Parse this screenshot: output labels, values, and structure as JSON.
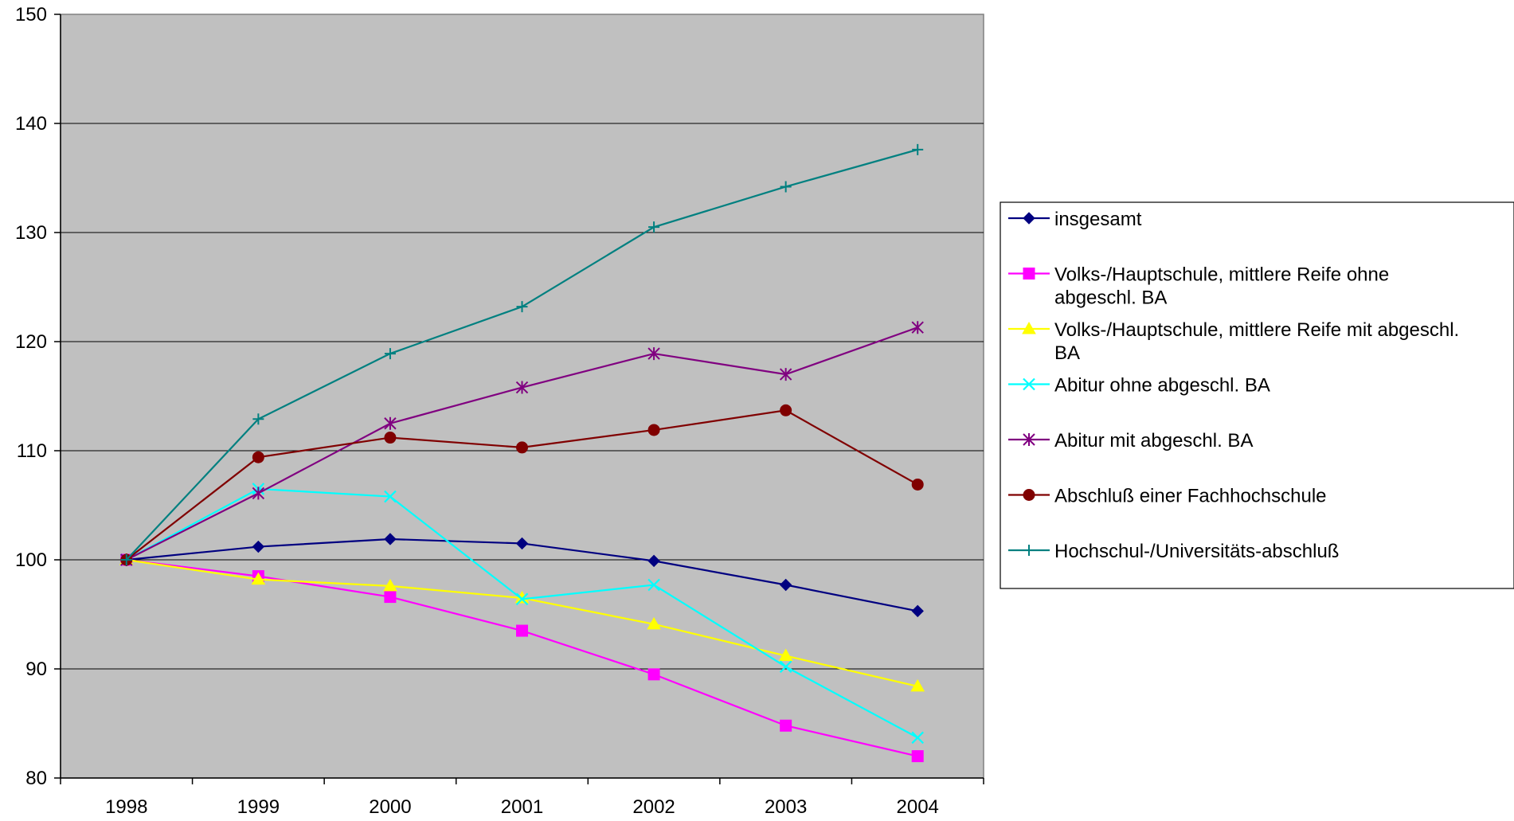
{
  "chart_data": {
    "type": "line",
    "title": "",
    "xlabel": "",
    "ylabel": "",
    "x": [
      "1998",
      "1999",
      "2000",
      "2001",
      "2002",
      "2003",
      "2004"
    ],
    "ylim": [
      80,
      150
    ],
    "yticks": [
      80,
      90,
      100,
      110,
      120,
      130,
      140,
      150
    ],
    "grid": true,
    "plot_background": "#C0C0C0",
    "legend_position": "right",
    "series": [
      {
        "name": "insgesamt",
        "label_lines": [
          "insgesamt"
        ],
        "color": "#000080",
        "marker": "diamond",
        "values": [
          100,
          101.2,
          101.9,
          101.5,
          99.9,
          97.7,
          95.3
        ]
      },
      {
        "name": "Volks-/Hauptschule, mittlere Reife ohne abgeschl. BA",
        "label_lines": [
          "Volks-/Hauptschule, mittlere Reife ohne",
          "abgeschl. BA"
        ],
        "color": "#FF00FF",
        "marker": "square",
        "values": [
          100,
          98.5,
          96.6,
          93.5,
          89.5,
          84.8,
          82.0
        ]
      },
      {
        "name": "Volks-/Hauptschule, mittlere Reife mit abgeschl. BA",
        "label_lines": [
          "Volks-/Hauptschule, mittlere Reife mit abgeschl.",
          "BA"
        ],
        "color": "#FFFF00",
        "marker": "triangle",
        "values": [
          100,
          98.2,
          97.6,
          96.5,
          94.1,
          91.2,
          88.4
        ]
      },
      {
        "name": "Abitur ohne abgeschl. BA",
        "label_lines": [
          "Abitur ohne abgeschl. BA"
        ],
        "color": "#00FFFF",
        "marker": "x",
        "values": [
          100,
          106.5,
          105.8,
          96.4,
          97.7,
          90.2,
          83.7
        ]
      },
      {
        "name": "Abitur mit abgeschl. BA",
        "label_lines": [
          "Abitur mit abgeschl. BA"
        ],
        "color": "#800080",
        "marker": "star",
        "values": [
          100,
          106.1,
          112.5,
          115.8,
          118.9,
          117.0,
          121.3
        ]
      },
      {
        "name": "Abschluß einer Fachhochschule",
        "label_lines": [
          "Abschluß einer Fachhochschule"
        ],
        "color": "#800000",
        "marker": "circle",
        "values": [
          100,
          109.4,
          111.2,
          110.3,
          111.9,
          113.7,
          106.9
        ]
      },
      {
        "name": "Hochschul-/Universitäts-abschluß",
        "label_lines": [
          "Hochschul-/Universitäts-abschluß"
        ],
        "color": "#008080",
        "marker": "plus",
        "values": [
          100,
          112.9,
          118.9,
          123.2,
          130.5,
          134.2,
          137.6
        ]
      }
    ]
  }
}
